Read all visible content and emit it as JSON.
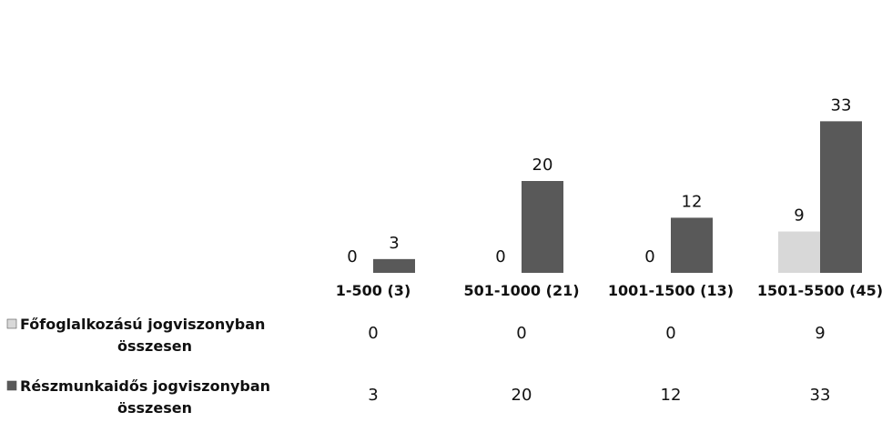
{
  "chart_data": {
    "type": "bar",
    "categories": [
      "1-500 (3)",
      "501-1000 (21)",
      "1001-1500 (13)",
      "1501-5500 (45)"
    ],
    "series": [
      {
        "name_lines": [
          "Főfoglalkozású  jogviszonyban",
          "összesen"
        ],
        "values": [
          0,
          0,
          0,
          9
        ],
        "color": "#d8d8d8"
      },
      {
        "name_lines": [
          "Részmunkaidős jogviszonyban",
          "összesen"
        ],
        "values": [
          3,
          20,
          12,
          33
        ],
        "color": "#595959"
      }
    ],
    "data_table": true,
    "legend": "left, in data table"
  }
}
